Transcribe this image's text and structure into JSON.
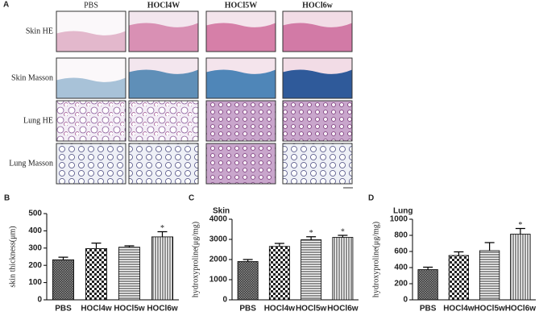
{
  "figure": {
    "panel_label": "A",
    "columns": [
      "PBS",
      "HOCl4W",
      "HOCl5W",
      "HOCl6w"
    ],
    "rows": [
      "Skin HE",
      "Skin Masson",
      "Lung HE",
      "Lung Masson"
    ]
  },
  "chart_data": [
    {
      "type": "bar",
      "panel_label": "B",
      "y_label": "skin thickness(μm)",
      "categories": [
        "PBS",
        "HOCl4w",
        "HOCl5w",
        "HOCl6w"
      ],
      "values": [
        232,
        297,
        305,
        365
      ],
      "errors": [
        15,
        32,
        8,
        30
      ],
      "significance": [
        null,
        null,
        null,
        "*"
      ],
      "patterns": [
        "crosshatch",
        "checker",
        "horizontal",
        "vertical"
      ],
      "ylim": [
        0,
        500
      ],
      "yticks": [
        0,
        100,
        200,
        300,
        400,
        500
      ]
    },
    {
      "type": "bar",
      "panel_label": "C",
      "title": "Skin",
      "y_label": "hydroxyproline(μg/mg)",
      "categories": [
        "PBS",
        "HOCl4w",
        "HOCl5w",
        "HOCl6w"
      ],
      "values": [
        1900,
        2650,
        2980,
        3100
      ],
      "errors": [
        100,
        150,
        150,
        100
      ],
      "significance": [
        null,
        null,
        "*",
        "*"
      ],
      "patterns": [
        "crosshatch",
        "checker",
        "horizontal",
        "vertical"
      ],
      "ylim": [
        0,
        4000
      ],
      "yticks": [
        0,
        1000,
        2000,
        3000,
        4000
      ]
    },
    {
      "type": "bar",
      "panel_label": "D",
      "title": "Lung",
      "y_label": "hydroxyproline(μg/mg)",
      "categories": [
        "PBS",
        "HOCl4w",
        "HOCl5w",
        "HOCl6w"
      ],
      "values": [
        375,
        550,
        610,
        815
      ],
      "errors": [
        30,
        45,
        100,
        70
      ],
      "significance": [
        null,
        null,
        null,
        "*"
      ],
      "patterns": [
        "crosshatch",
        "checker",
        "horizontal",
        "vertical"
      ],
      "ylim": [
        0,
        1000
      ],
      "yticks": [
        0,
        200,
        400,
        600,
        800,
        1000
      ]
    }
  ]
}
